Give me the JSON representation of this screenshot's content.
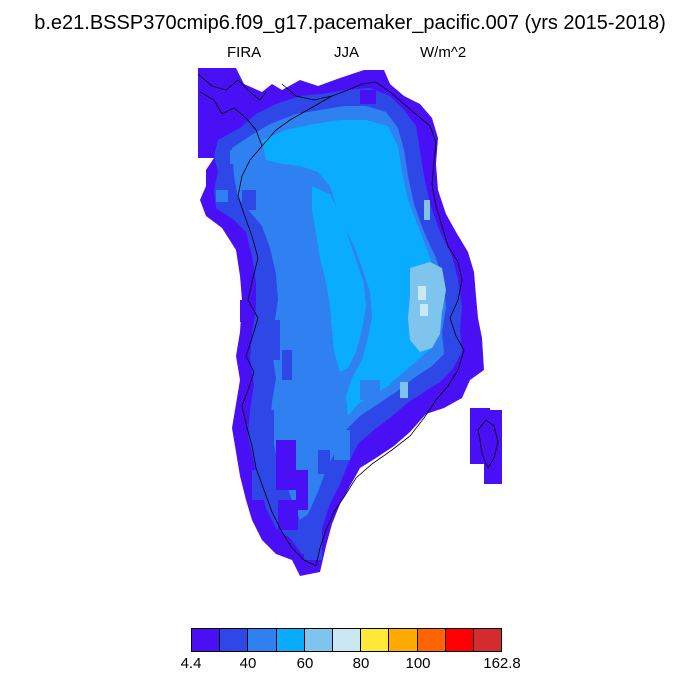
{
  "title": "b.e21.BSSP370cmip6.f09_g17.pacemaker_pacific.007 (yrs 2015-2018)",
  "subtitle_left": "FIRA",
  "subtitle_center": "JJA",
  "subtitle_right": "W/m^2",
  "colorbar": {
    "colors": [
      "#4a10f5",
      "#2e48e8",
      "#2f80f0",
      "#0aacff",
      "#7ec4ec",
      "#c8e8f6",
      "#ffe838",
      "#ffaa00",
      "#ff6400",
      "#ff0000",
      "#d42c2c"
    ],
    "labels": [
      "4.4",
      "40",
      "60",
      "80",
      "100",
      "162.8"
    ]
  },
  "chart_data": {
    "type": "heatmap",
    "variable": "FIRA",
    "season": "JJA",
    "units": "W/m^2",
    "region": "Greenland",
    "color_levels": [
      4.4,
      40,
      60,
      80,
      100,
      162.8
    ],
    "pattern": {
      "coastal_margin": "4.4-40",
      "western_interior": "40-60",
      "central_eastern_interior": "60-80",
      "east_central_max": "80-100"
    }
  }
}
